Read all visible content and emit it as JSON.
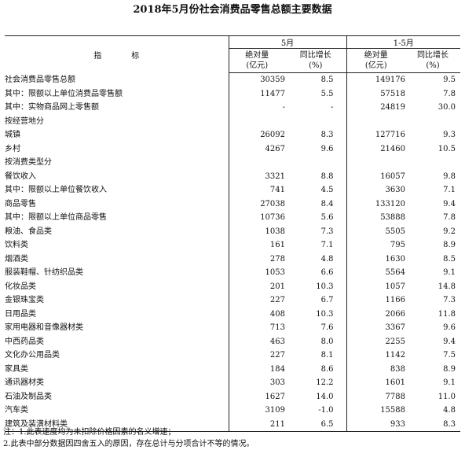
{
  "title": "2018年5月份社会消费品零售总额主要数据",
  "header": {
    "indicator": "指　标",
    "group_may": "5月",
    "group_jan_may": "1-5月",
    "col_abs_line1": "绝对量",
    "col_abs_line2": "(亿元)",
    "col_yoy_line1": "同比增长",
    "col_yoy_line2": "(%)"
  },
  "rows": [
    {
      "label": "社会消费品零售总额",
      "indent": 0,
      "may_abs": "30359",
      "may_yoy": "8.5",
      "ytd_abs": "149176",
      "ytd_yoy": "9.5"
    },
    {
      "label": "其中：限额以上单位消费品零售额",
      "indent": 1,
      "may_abs": "11477",
      "may_yoy": "5.5",
      "ytd_abs": "57518",
      "ytd_yoy": "7.8"
    },
    {
      "label": "其中：实物商品网上零售额",
      "indent": 2,
      "may_abs": "-",
      "may_yoy": "-",
      "ytd_abs": "24819",
      "ytd_yoy": "30.0"
    },
    {
      "label": "按经营地分",
      "indent": 0,
      "may_abs": "",
      "may_yoy": "",
      "ytd_abs": "",
      "ytd_yoy": ""
    },
    {
      "label": "城镇",
      "indent": 1,
      "may_abs": "26092",
      "may_yoy": "8.3",
      "ytd_abs": "127716",
      "ytd_yoy": "9.3"
    },
    {
      "label": "乡村",
      "indent": 1,
      "may_abs": "4267",
      "may_yoy": "9.6",
      "ytd_abs": "21460",
      "ytd_yoy": "10.5"
    },
    {
      "label": "按消费类型分",
      "indent": 0,
      "may_abs": "",
      "may_yoy": "",
      "ytd_abs": "",
      "ytd_yoy": ""
    },
    {
      "label": "餐饮收入",
      "indent": 1,
      "may_abs": "3321",
      "may_yoy": "8.8",
      "ytd_abs": "16057",
      "ytd_yoy": "9.8"
    },
    {
      "label": "其中：限额以上单位餐饮收入",
      "indent": 2,
      "may_abs": "741",
      "may_yoy": "4.5",
      "ytd_abs": "3630",
      "ytd_yoy": "7.1"
    },
    {
      "label": "商品零售",
      "indent": 1,
      "may_abs": "27038",
      "may_yoy": "8.4",
      "ytd_abs": "133120",
      "ytd_yoy": "9.4"
    },
    {
      "label": "其中：限额以上单位商品零售",
      "indent": 2,
      "may_abs": "10736",
      "may_yoy": "5.6",
      "ytd_abs": "53888",
      "ytd_yoy": "7.8"
    },
    {
      "label": "粮油、食品类",
      "indent": 3,
      "may_abs": "1038",
      "may_yoy": "7.3",
      "ytd_abs": "5505",
      "ytd_yoy": "9.2"
    },
    {
      "label": "饮料类",
      "indent": 3,
      "may_abs": "161",
      "may_yoy": "7.1",
      "ytd_abs": "795",
      "ytd_yoy": "8.9"
    },
    {
      "label": "烟酒类",
      "indent": 3,
      "may_abs": "278",
      "may_yoy": "4.8",
      "ytd_abs": "1630",
      "ytd_yoy": "8.5"
    },
    {
      "label": "服装鞋帽、针纺织品类",
      "indent": 3,
      "may_abs": "1053",
      "may_yoy": "6.6",
      "ytd_abs": "5564",
      "ytd_yoy": "9.1"
    },
    {
      "label": "化妆品类",
      "indent": 3,
      "may_abs": "201",
      "may_yoy": "10.3",
      "ytd_abs": "1057",
      "ytd_yoy": "14.8"
    },
    {
      "label": "金银珠宝类",
      "indent": 3,
      "may_abs": "227",
      "may_yoy": "6.7",
      "ytd_abs": "1166",
      "ytd_yoy": "7.3"
    },
    {
      "label": "日用品类",
      "indent": 3,
      "may_abs": "408",
      "may_yoy": "10.3",
      "ytd_abs": "2066",
      "ytd_yoy": "11.8"
    },
    {
      "label": "家用电器和音像器材类",
      "indent": 3,
      "may_abs": "713",
      "may_yoy": "7.6",
      "ytd_abs": "3367",
      "ytd_yoy": "9.6"
    },
    {
      "label": "中西药品类",
      "indent": 3,
      "may_abs": "463",
      "may_yoy": "8.0",
      "ytd_abs": "2255",
      "ytd_yoy": "9.4"
    },
    {
      "label": "文化办公用品类",
      "indent": 3,
      "may_abs": "227",
      "may_yoy": "8.1",
      "ytd_abs": "1142",
      "ytd_yoy": "7.5"
    },
    {
      "label": "家具类",
      "indent": 3,
      "may_abs": "184",
      "may_yoy": "8.6",
      "ytd_abs": "838",
      "ytd_yoy": "8.9"
    },
    {
      "label": "通讯器材类",
      "indent": 3,
      "may_abs": "303",
      "may_yoy": "12.2",
      "ytd_abs": "1601",
      "ytd_yoy": "9.1"
    },
    {
      "label": "石油及制品类",
      "indent": 3,
      "may_abs": "1627",
      "may_yoy": "14.0",
      "ytd_abs": "7788",
      "ytd_yoy": "11.0"
    },
    {
      "label": "汽车类",
      "indent": 3,
      "may_abs": "3109",
      "may_yoy": "-1.0",
      "ytd_abs": "15588",
      "ytd_yoy": "4.8"
    },
    {
      "label": "建筑及装潢材料类",
      "indent": 3,
      "may_abs": "211",
      "may_yoy": "6.5",
      "ytd_abs": "933",
      "ytd_yoy": "8.3"
    }
  ],
  "notes": [
    "注：1.此表速度均为未扣除价格因素的名义增速；",
    "2.此表中部分数据因四舍五入的原因，存在总计与分项合计不等的情况。"
  ]
}
